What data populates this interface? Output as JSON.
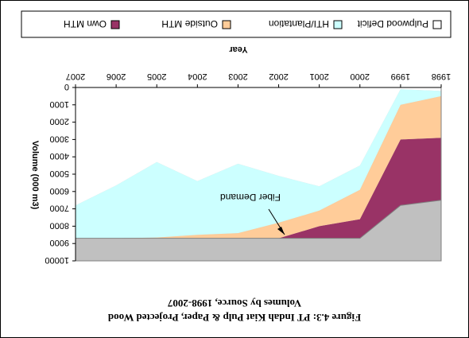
{
  "chart_data": {
    "type": "area",
    "orientation": "rotated 180 degrees (image displayed upside down)",
    "caption_line1": "Figure 4.3: PT Indah Kiat Pulp & Paper, Projected Wood",
    "caption_line2": "Volumes by Source, 1998-2007",
    "xlabel": "Year",
    "ylabel": "Volume (000 m3)",
    "x": [
      "1998",
      "1999",
      "2000",
      "2001",
      "2002",
      "2003",
      "2004",
      "2005",
      "2006",
      "2007"
    ],
    "ylim": [
      0,
      10000
    ],
    "y_ticks": [
      0,
      1000,
      2000,
      3000,
      4000,
      5000,
      6000,
      7000,
      8000,
      9000,
      10000
    ],
    "series": [
      {
        "name": "Own MTH",
        "color": "#993366",
        "values": [
          3600,
          3800,
          1100,
          700,
          0,
          0,
          0,
          0,
          0,
          0
        ]
      },
      {
        "name": "Outside MTH",
        "color": "#ffcc99",
        "values": [
          2400,
          2000,
          1700,
          900,
          900,
          300,
          200,
          50,
          0,
          0
        ]
      },
      {
        "name": "HTI/Plantation",
        "color": "#ccffff",
        "values": [
          300,
          900,
          1400,
          1400,
          2700,
          4000,
          3100,
          4350,
          3050,
          1900
        ]
      },
      {
        "name": "Pulpwood Deficit",
        "color": "#ffffff",
        "values": [
          6400,
          7000,
          4500,
          5700,
          6100,
          5400,
          6400,
          4300,
          5650,
          6800
        ]
      }
    ],
    "base_area": {
      "color": "#c0c0c0",
      "values": [
        10000,
        10000,
        10000,
        10000,
        10000,
        10000,
        10000,
        10000,
        10000,
        10000
      ]
    },
    "fiber_demand_line": [
      6500,
      6800,
      8700,
      8700,
      8700,
      8700,
      8700,
      8700,
      8700,
      8700
    ],
    "annotation": "Fiber Demand",
    "grid": false,
    "legend_position": "top"
  }
}
